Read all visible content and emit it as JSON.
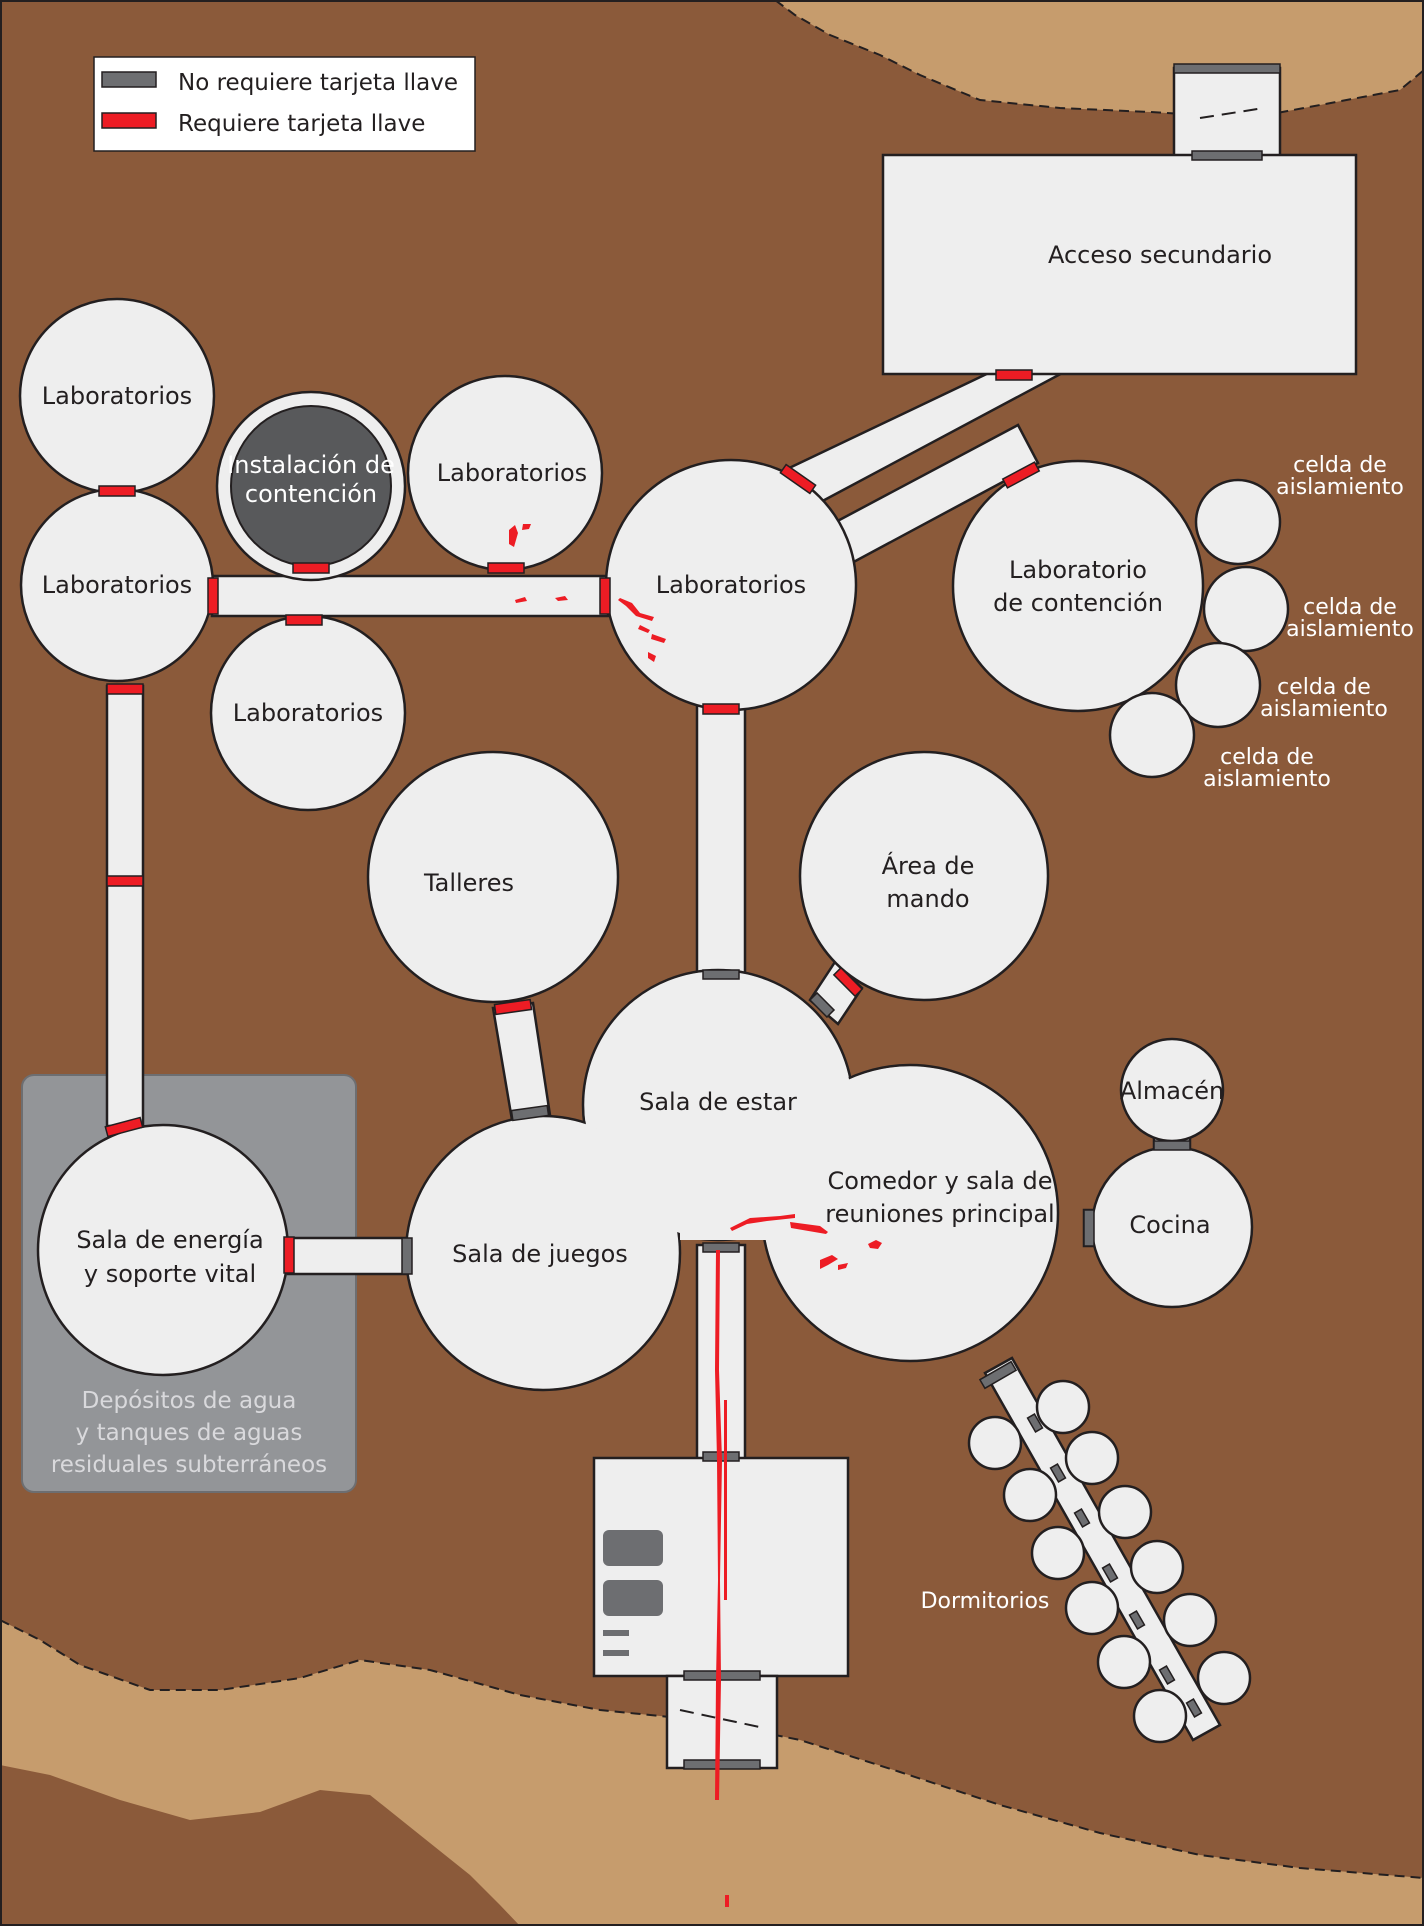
{
  "legend": {
    "no_key": "No requiere tarjeta llave",
    "key": "Requiere tarjeta llave"
  },
  "colors": {
    "earth": "#8b5a3a",
    "surface": "#c69c6d",
    "room": "#eeeeee",
    "door_no_key": "#6d6e71",
    "door_key": "#ed1c24",
    "containment_core": "#58595b",
    "water_zone": "#939598"
  },
  "rooms": {
    "labs_top_left": "Laboratorios",
    "labs_left": "Laboratorios",
    "containment_facility": [
      "Instalación de",
      "contención"
    ],
    "labs_top_mid": "Laboratorios",
    "labs_bottom_mid": "Laboratorios",
    "labs_center": "Laboratorios",
    "secondary_access": "Acceso secundario",
    "containment_lab": [
      "Laboratorio",
      "de contención"
    ],
    "isolation_cell": [
      "celda de",
      "aislamiento"
    ],
    "workshops": "Talleres",
    "command_area": [
      "Área de",
      "mando"
    ],
    "living_room": "Sala de estar",
    "dining": [
      "Comedor y sala de",
      "reuniones principal"
    ],
    "storage": "Almacén",
    "kitchen": "Cocina",
    "power_room": [
      "Sala de energía",
      "y soporte vital"
    ],
    "games_room": "Sala de juegos",
    "water_tanks": [
      "Depósitos de agua",
      "y tanques de aguas",
      "residuales subterráneos"
    ],
    "dormitories": "Dormitorios"
  }
}
